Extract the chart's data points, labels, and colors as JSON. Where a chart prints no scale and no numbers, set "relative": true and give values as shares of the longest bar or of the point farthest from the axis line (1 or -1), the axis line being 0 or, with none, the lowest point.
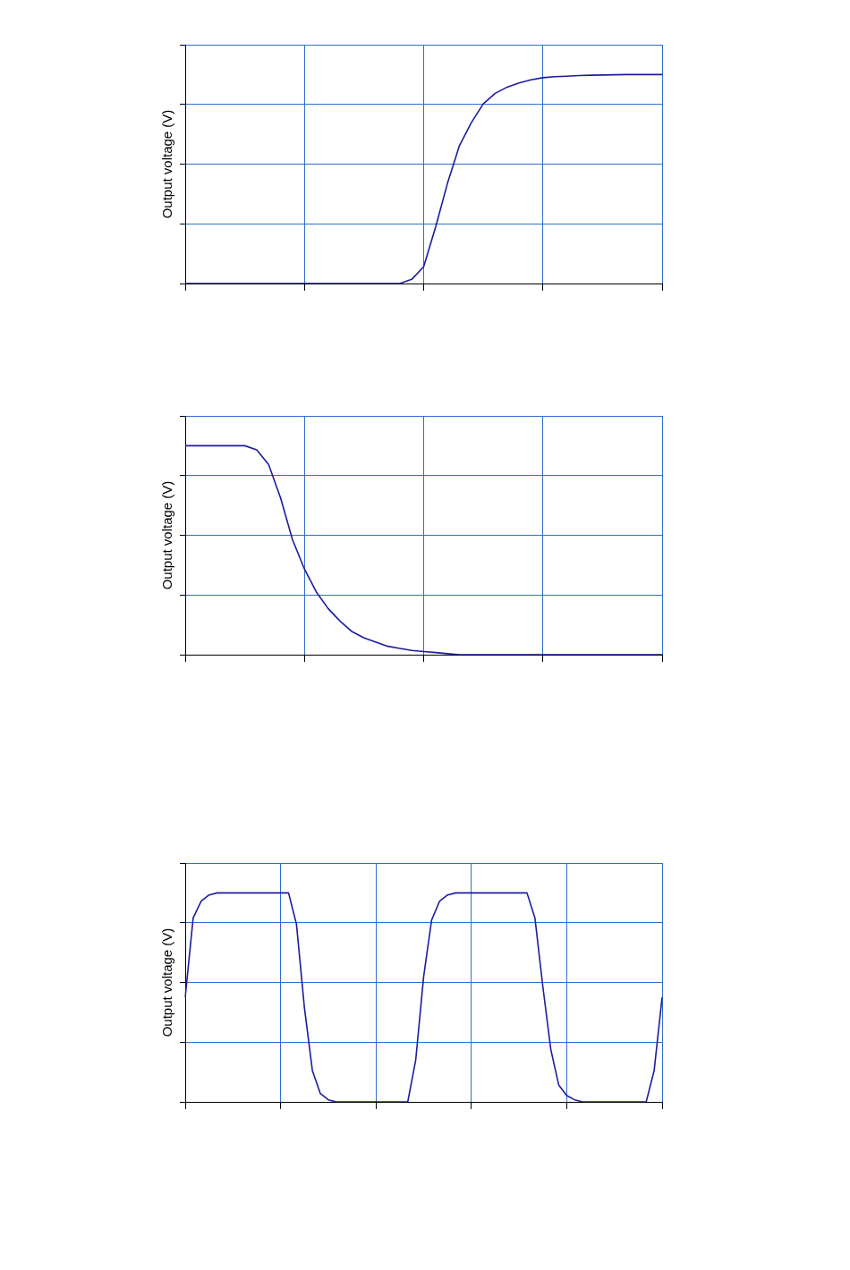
{
  "chart_data": [
    {
      "type": "line",
      "ylabel": "Output voltage (V)",
      "relative": true,
      "grid": true,
      "legend": false,
      "marker": "none",
      "line_style": "solid",
      "tick_labels": false,
      "categories": [
        null,
        null,
        null,
        null,
        null,
        null,
        null,
        null,
        null,
        null,
        null,
        null,
        null,
        null,
        null,
        null,
        null,
        null,
        null,
        null,
        null,
        null,
        null,
        null,
        null,
        null,
        null,
        null,
        null,
        null,
        null,
        null,
        null,
        null,
        null,
        null,
        null,
        null,
        null,
        null,
        null
      ],
      "series": [
        {
          "color": "#1c1c9e",
          "values": [
            0,
            0,
            0,
            0,
            0,
            0,
            0,
            0,
            0,
            0,
            0,
            0,
            0,
            0,
            0,
            0,
            0,
            0,
            0,
            0.02,
            0.08,
            0.27,
            0.48,
            0.66,
            0.77,
            0.86,
            0.91,
            0.94,
            0.96,
            0.975,
            0.985,
            0.99,
            0.992,
            0.995,
            0.997,
            0.998,
            0.999,
            1,
            1,
            1,
            1
          ]
        }
      ]
    },
    {
      "type": "line",
      "ylabel": "Output voltage (V)",
      "relative": true,
      "grid": true,
      "legend": false,
      "marker": "none",
      "line_style": "solid",
      "tick_labels": false,
      "categories": [
        null,
        null,
        null,
        null,
        null,
        null,
        null,
        null,
        null,
        null,
        null,
        null,
        null,
        null,
        null,
        null,
        null,
        null,
        null,
        null,
        null,
        null,
        null,
        null,
        null,
        null,
        null,
        null,
        null,
        null,
        null,
        null,
        null,
        null,
        null,
        null,
        null,
        null,
        null,
        null,
        null
      ],
      "series": [
        {
          "color": "#1c1c9e",
          "values": [
            1,
            1,
            1,
            1,
            1,
            1,
            0.98,
            0.91,
            0.75,
            0.55,
            0.41,
            0.3,
            0.22,
            0.16,
            0.11,
            0.08,
            0.06,
            0.04,
            0.03,
            0.02,
            0.015,
            0.01,
            0.005,
            0,
            0,
            0,
            0,
            0,
            0,
            0,
            0,
            0,
            0,
            0,
            0,
            0,
            0,
            0,
            0,
            0,
            0
          ]
        }
      ]
    },
    {
      "type": "line",
      "ylabel": "Output voltage (V)",
      "relative": true,
      "grid": true,
      "legend": false,
      "marker": "none",
      "line_style": "solid",
      "tick_labels": false,
      "categories": [
        null,
        null,
        null,
        null,
        null,
        null,
        null,
        null,
        null,
        null,
        null,
        null,
        null,
        null,
        null,
        null,
        null,
        null,
        null,
        null,
        null,
        null,
        null,
        null,
        null,
        null,
        null,
        null,
        null,
        null,
        null,
        null,
        null,
        null,
        null,
        null,
        null,
        null,
        null,
        null,
        null,
        null,
        null,
        null,
        null,
        null,
        null,
        null,
        null,
        null,
        null,
        null,
        null,
        null,
        null,
        null,
        null,
        null,
        null,
        null,
        null
      ],
      "series": [
        {
          "color": "#1c1c9e",
          "values": [
            0.5,
            0.88,
            0.96,
            0.99,
            1,
            1,
            1,
            1,
            1,
            1,
            1,
            1,
            1,
            1,
            0.85,
            0.45,
            0.15,
            0.04,
            0.01,
            0,
            0,
            0,
            0,
            0,
            0,
            0,
            0,
            0,
            0,
            0.2,
            0.6,
            0.87,
            0.96,
            0.99,
            1,
            1,
            1,
            1,
            1,
            1,
            1,
            1,
            1,
            1,
            0.88,
            0.55,
            0.25,
            0.08,
            0.03,
            0.01,
            0,
            0,
            0,
            0,
            0,
            0,
            0,
            0,
            0,
            0.15,
            0.5
          ]
        }
      ]
    }
  ]
}
